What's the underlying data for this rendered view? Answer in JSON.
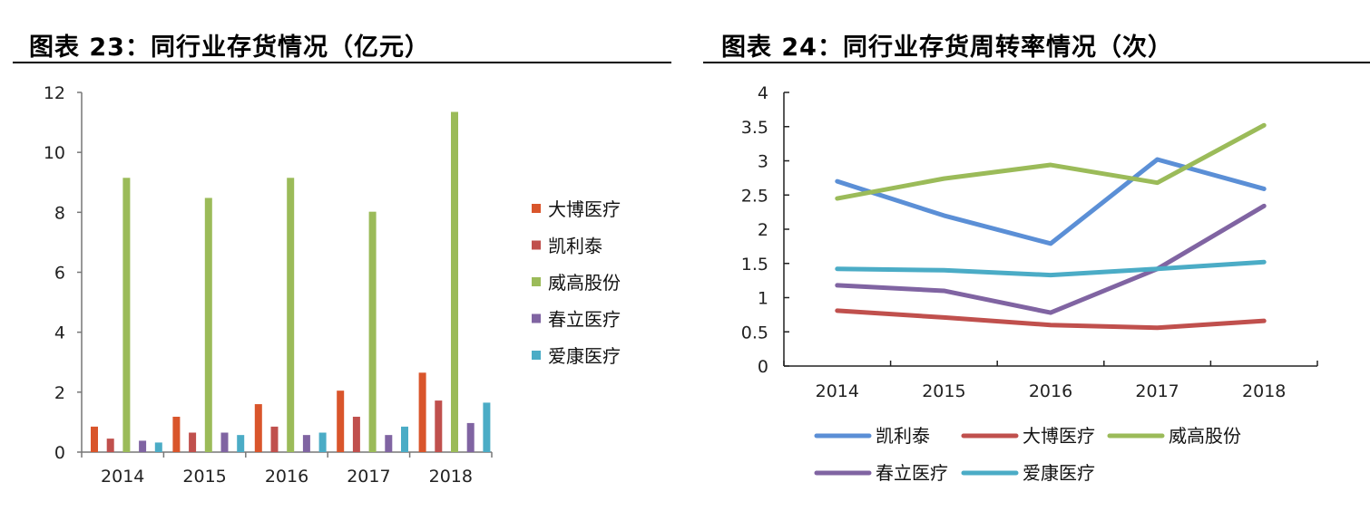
{
  "charts": [
    {
      "title": "图表 23：同行业存货情况（亿元）",
      "chart_data": {
        "type": "bar",
        "categories": [
          "2014",
          "2015",
          "2016",
          "2017",
          "2018"
        ],
        "ylim": [
          0,
          12
        ],
        "yticks": [
          "0",
          "2",
          "4",
          "6",
          "8",
          "10",
          "12"
        ],
        "grid": false,
        "legend_position": "right",
        "series": [
          {
            "name": "大博医疗",
            "color": "#d9552b",
            "values": [
              0.85,
              1.18,
              1.6,
              2.05,
              2.65
            ]
          },
          {
            "name": "凯利泰",
            "color": "#c0504d",
            "values": [
              0.45,
              0.65,
              0.85,
              1.18,
              1.72
            ]
          },
          {
            "name": "威高股份",
            "color": "#9bbb59",
            "values": [
              9.15,
              8.48,
              9.15,
              8.02,
              11.35
            ]
          },
          {
            "name": "春立医疗",
            "color": "#8064a2",
            "values": [
              0.38,
              0.65,
              0.57,
              0.57,
              0.97
            ]
          },
          {
            "name": "爱康医疗",
            "color": "#4bacc6",
            "values": [
              0.32,
              0.57,
              0.65,
              0.85,
              1.65
            ]
          }
        ]
      }
    },
    {
      "title": "图表 24：同行业存货周转率情况（次）",
      "chart_data": {
        "type": "line",
        "categories": [
          "2014",
          "2015",
          "2016",
          "2017",
          "2018"
        ],
        "ylim": [
          0,
          4
        ],
        "yticks": [
          "0",
          "0.5",
          "1",
          "1.5",
          "2",
          "2.5",
          "3",
          "3.5",
          "4"
        ],
        "grid": false,
        "legend_position": "bottom",
        "series": [
          {
            "name": "凯利泰",
            "color": "#5b8fd6",
            "values": [
              2.7,
              2.2,
              1.79,
              3.02,
              2.59
            ]
          },
          {
            "name": "大博医疗",
            "color": "#c0504d",
            "values": [
              0.81,
              0.71,
              0.6,
              0.56,
              0.66
            ]
          },
          {
            "name": "威高股份",
            "color": "#9bbb59",
            "values": [
              2.45,
              2.74,
              2.94,
              2.68,
              3.52
            ]
          },
          {
            "name": "春立医疗",
            "color": "#8064a2",
            "values": [
              1.18,
              1.1,
              0.78,
              1.42,
              2.34
            ]
          },
          {
            "name": "爱康医疗",
            "color": "#4bacc6",
            "values": [
              1.42,
              1.4,
              1.33,
              1.42,
              1.52
            ]
          }
        ]
      }
    }
  ]
}
